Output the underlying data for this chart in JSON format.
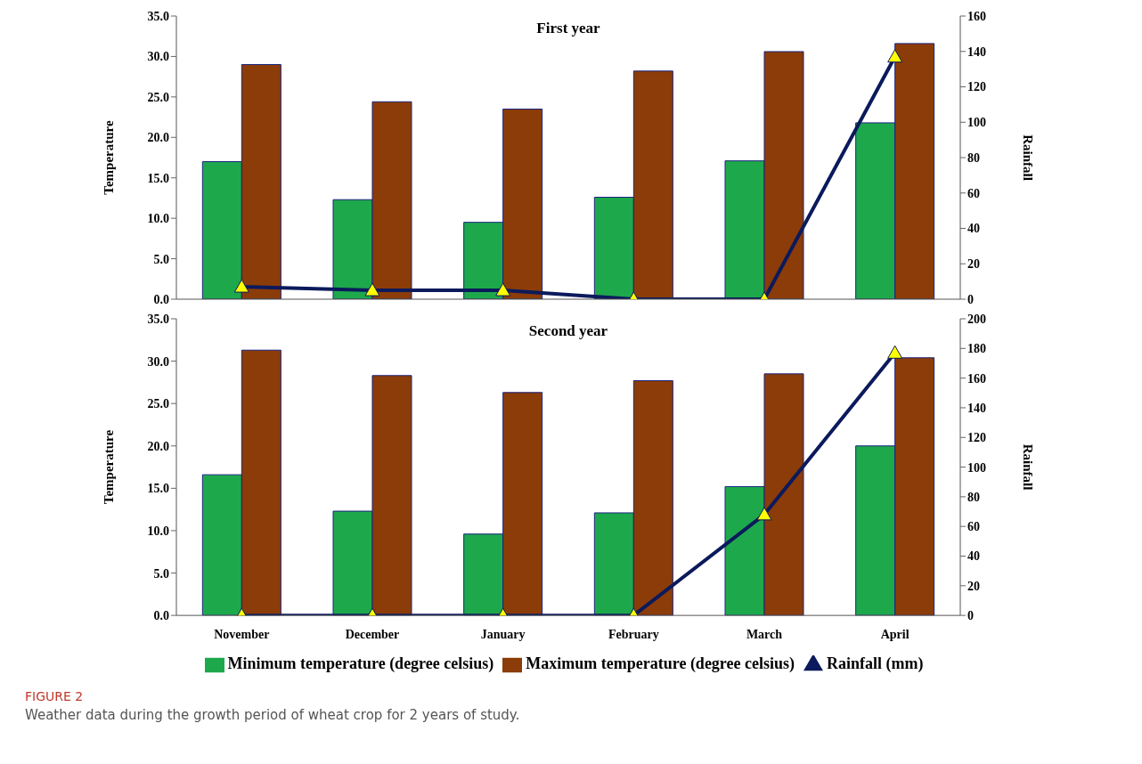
{
  "chart_data": [
    {
      "type": "bar",
      "title": "First year",
      "ylabel": "Temperature",
      "y2label": "Rainfall",
      "categories": [
        null,
        null,
        null,
        null,
        null,
        null
      ],
      "tick_labels": "y",
      "marker": "triangle",
      "line_style": "solid",
      "series": [
        {
          "color": "#1ea84c",
          "values": [
            17.0,
            12.3,
            9.5,
            12.6,
            17.1,
            21.8
          ]
        },
        {
          "color": "#8b3c08",
          "values": [
            29.0,
            24.4,
            23.5,
            28.2,
            30.6,
            31.6
          ]
        },
        {
          "type": "line",
          "axis": "y2",
          "color": "#0b1a5c",
          "values": [
            7,
            5,
            5,
            0,
            0,
            137
          ]
        }
      ],
      "ylim": [
        0,
        35
      ],
      "yticks": [
        {
          "value": 0,
          "label": "0.0"
        },
        {
          "value": 5,
          "label": "5.0"
        },
        {
          "value": 10,
          "label": "10.0"
        },
        {
          "value": 15,
          "label": "15.0"
        },
        {
          "value": 20,
          "label": "20.0"
        },
        {
          "value": 25,
          "label": "25.0"
        },
        {
          "value": 30,
          "label": "30.0"
        },
        {
          "value": 35,
          "label": "35.0"
        }
      ],
      "y2lim": [
        0,
        160
      ],
      "y2ticks": [
        0,
        20,
        40,
        60,
        80,
        100,
        120,
        140,
        160
      ]
    },
    {
      "type": "bar",
      "title": "Second year",
      "ylabel": "Temperature",
      "y2label": "Rainfall",
      "categories": [
        "November",
        "December",
        "January",
        "February",
        "March",
        "April"
      ],
      "legend": "bottom",
      "marker": "triangle",
      "line_style": "solid",
      "series": [
        {
          "name": "Minimum temperature (degree celsius)",
          "color": "#1ea84c",
          "values": [
            16.6,
            12.3,
            9.6,
            12.1,
            15.2,
            20.0
          ]
        },
        {
          "name": "Maximum temperature (degree celsius)",
          "color": "#8b3c08",
          "values": [
            31.3,
            28.3,
            26.3,
            27.7,
            28.5,
            30.4
          ]
        },
        {
          "type": "line",
          "axis": "y2",
          "name": "Rainfall (mm)",
          "color": "#0b1a5c",
          "values": [
            0,
            0,
            0,
            0,
            68,
            177
          ]
        }
      ],
      "ylim": [
        0,
        35
      ],
      "yticks": [
        {
          "value": 0,
          "label": "0.0"
        },
        {
          "value": 5,
          "label": "5.0"
        },
        {
          "value": 10,
          "label": "10.0"
        },
        {
          "value": 15,
          "label": "15.0"
        },
        {
          "value": 20,
          "label": "20.0"
        },
        {
          "value": 25,
          "label": "25.0"
        },
        {
          "value": 30,
          "label": "30.0"
        },
        {
          "value": 35,
          "label": "35.0"
        }
      ],
      "y2lim": [
        0,
        200
      ],
      "y2ticks": [
        0,
        20,
        40,
        60,
        80,
        100,
        120,
        140,
        160,
        180,
        200
      ],
      "annotations": [
        "FIGURE 2",
        "Weather data during the growth period of wheat crop for 2 years of study."
      ]
    }
  ]
}
